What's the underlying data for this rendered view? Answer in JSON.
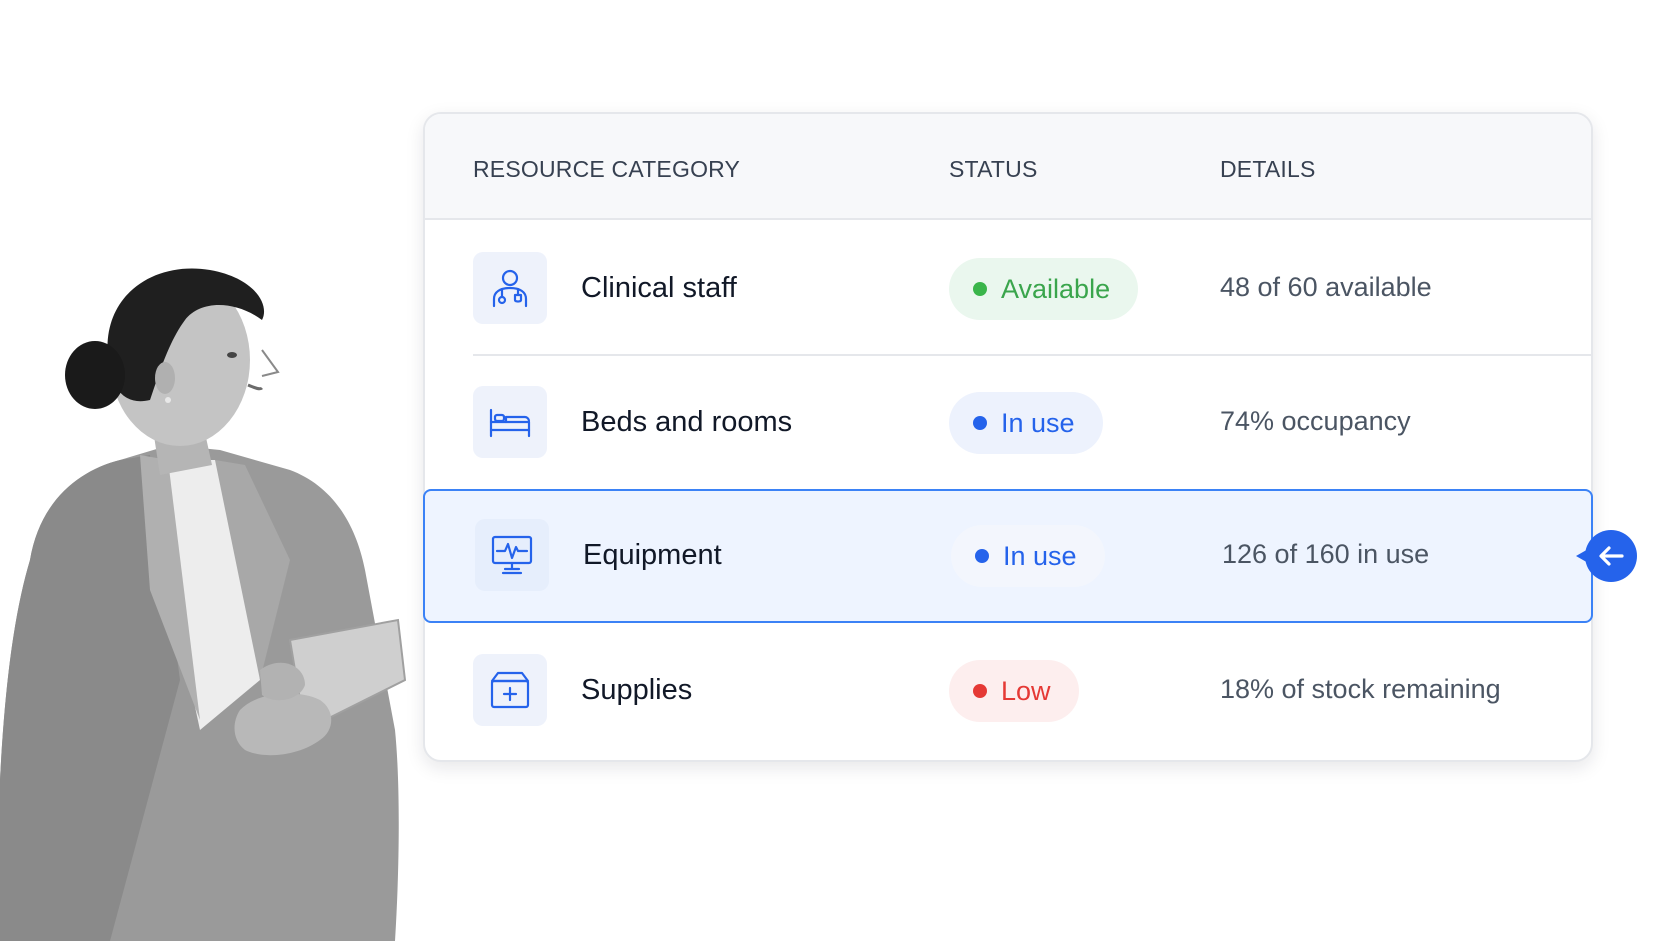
{
  "table": {
    "headers": {
      "category": "RESOURCE CATEGORY",
      "status": "STATUS",
      "details": "DETAILS"
    },
    "rows": [
      {
        "icon": "clinician-icon",
        "name": "Clinical staff",
        "status": "Available",
        "status_color": "#3ab54a",
        "details": "48 of 60 available",
        "selected": false
      },
      {
        "icon": "bed-icon",
        "name": "Beds and rooms",
        "status": "In use",
        "status_color": "#2563eb",
        "details": "74% occupancy",
        "selected": false
      },
      {
        "icon": "monitor-icon",
        "name": "Equipment",
        "status": "In use",
        "status_color": "#2563eb",
        "details": "126 of 160 in use",
        "selected": true
      },
      {
        "icon": "medical-kit-icon",
        "name": "Supplies",
        "status": "Low",
        "status_color": "#e53935",
        "details": "18% of stock remaining",
        "selected": false
      }
    ]
  },
  "colors": {
    "accent": "#2563eb",
    "selected_row_bg": "#eef4ff",
    "selected_row_border": "#3b82f6"
  },
  "pointer": {
    "icon": "arrow-left-icon"
  }
}
